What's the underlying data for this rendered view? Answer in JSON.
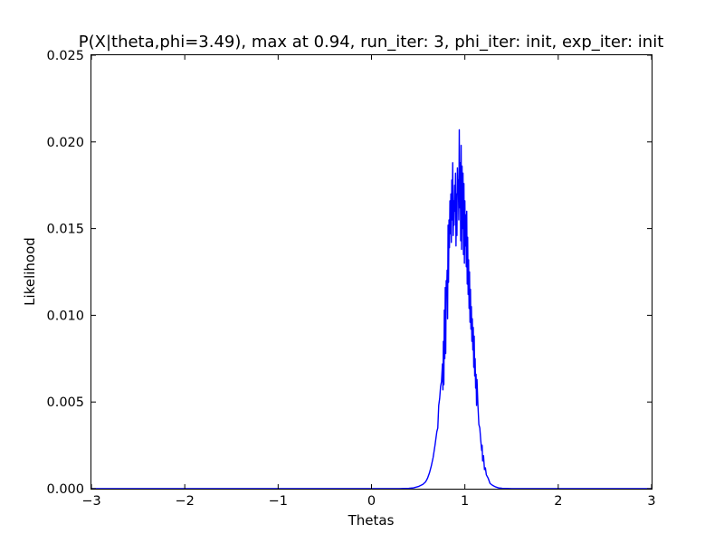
{
  "chart_data": {
    "type": "line",
    "title": "P(X|theta,phi=3.49), max at 0.94, run_iter: 3, phi_iter: init, exp_iter: init",
    "xlabel": "Thetas",
    "ylabel": "Likelihood",
    "xlim": [
      -3,
      3
    ],
    "ylim": [
      0,
      0.025
    ],
    "grid": false,
    "legend": "none",
    "x_ticks": [
      {
        "value": -3,
        "label": "−3"
      },
      {
        "value": -2,
        "label": "−2"
      },
      {
        "value": -1,
        "label": "−1"
      },
      {
        "value": 0,
        "label": "0"
      },
      {
        "value": 1,
        "label": "1"
      },
      {
        "value": 2,
        "label": "2"
      },
      {
        "value": 3,
        "label": "3"
      }
    ],
    "y_ticks": [
      {
        "value": 0,
        "label": "0.000"
      },
      {
        "value": 0.005,
        "label": "0.005"
      },
      {
        "value": 0.01,
        "label": "0.010"
      },
      {
        "value": 0.015,
        "label": "0.015"
      },
      {
        "value": 0.02,
        "label": "0.020"
      },
      {
        "value": 0.025,
        "label": "0.025"
      }
    ],
    "series": [
      {
        "color": "#0000ff",
        "points": [
          [
            -3.0,
            0.0
          ],
          [
            -1.0,
            0.0
          ],
          [
            0.0,
            0.0
          ],
          [
            0.3,
            0.0
          ],
          [
            0.4,
            2e-05
          ],
          [
            0.45,
            5e-05
          ],
          [
            0.5,
            0.00012
          ],
          [
            0.55,
            0.00025
          ],
          [
            0.58,
            0.0004
          ],
          [
            0.6,
            0.0006
          ],
          [
            0.62,
            0.0009
          ],
          [
            0.64,
            0.0013
          ],
          [
            0.66,
            0.0018
          ],
          [
            0.68,
            0.0025
          ],
          [
            0.7,
            0.0033
          ],
          [
            0.71,
            0.0035
          ],
          [
            0.72,
            0.0048
          ],
          [
            0.73,
            0.0052
          ],
          [
            0.74,
            0.0059
          ],
          [
            0.75,
            0.0062
          ],
          [
            0.76,
            0.0072
          ],
          [
            0.765,
            0.0057
          ],
          [
            0.77,
            0.0085
          ],
          [
            0.775,
            0.006
          ],
          [
            0.78,
            0.0103
          ],
          [
            0.785,
            0.0075
          ],
          [
            0.79,
            0.0116
          ],
          [
            0.795,
            0.0078
          ],
          [
            0.8,
            0.012
          ],
          [
            0.805,
            0.0112
          ],
          [
            0.81,
            0.0126
          ],
          [
            0.815,
            0.0098
          ],
          [
            0.82,
            0.0152
          ],
          [
            0.825,
            0.0119
          ],
          [
            0.83,
            0.0155
          ],
          [
            0.835,
            0.0139
          ],
          [
            0.84,
            0.0166
          ],
          [
            0.845,
            0.0147
          ],
          [
            0.85,
            0.017
          ],
          [
            0.855,
            0.0142
          ],
          [
            0.86,
            0.0178
          ],
          [
            0.865,
            0.0155
          ],
          [
            0.87,
            0.0188
          ],
          [
            0.875,
            0.0146
          ],
          [
            0.88,
            0.0166
          ],
          [
            0.885,
            0.0152
          ],
          [
            0.89,
            0.0175
          ],
          [
            0.895,
            0.016
          ],
          [
            0.9,
            0.0182
          ],
          [
            0.905,
            0.014
          ],
          [
            0.91,
            0.017
          ],
          [
            0.915,
            0.0146
          ],
          [
            0.92,
            0.0185
          ],
          [
            0.925,
            0.017
          ],
          [
            0.93,
            0.0178
          ],
          [
            0.935,
            0.0155
          ],
          [
            0.94,
            0.0207
          ],
          [
            0.945,
            0.0162
          ],
          [
            0.95,
            0.0188
          ],
          [
            0.955,
            0.0143
          ],
          [
            0.96,
            0.0198
          ],
          [
            0.965,
            0.0138
          ],
          [
            0.97,
            0.0186
          ],
          [
            0.975,
            0.015
          ],
          [
            0.98,
            0.0182
          ],
          [
            0.985,
            0.0135
          ],
          [
            0.99,
            0.0176
          ],
          [
            0.995,
            0.013
          ],
          [
            1.0,
            0.0166
          ],
          [
            1.005,
            0.014
          ],
          [
            1.01,
            0.0158
          ],
          [
            1.015,
            0.0128
          ],
          [
            1.02,
            0.016
          ],
          [
            1.025,
            0.0118
          ],
          [
            1.03,
            0.0145
          ],
          [
            1.035,
            0.0112
          ],
          [
            1.04,
            0.0132
          ],
          [
            1.045,
            0.0104
          ],
          [
            1.05,
            0.0125
          ],
          [
            1.055,
            0.0096
          ],
          [
            1.06,
            0.0115
          ],
          [
            1.065,
            0.0092
          ],
          [
            1.07,
            0.0105
          ],
          [
            1.075,
            0.0085
          ],
          [
            1.08,
            0.0098
          ],
          [
            1.085,
            0.008
          ],
          [
            1.09,
            0.0093
          ],
          [
            1.095,
            0.007
          ],
          [
            1.1,
            0.0088
          ],
          [
            1.105,
            0.0065
          ],
          [
            1.11,
            0.0075
          ],
          [
            1.115,
            0.0058
          ],
          [
            1.12,
            0.0066
          ],
          [
            1.125,
            0.0048
          ],
          [
            1.13,
            0.0063
          ],
          [
            1.14,
            0.0048
          ],
          [
            1.15,
            0.0037
          ],
          [
            1.16,
            0.0035
          ],
          [
            1.17,
            0.0028
          ],
          [
            1.18,
            0.0022
          ],
          [
            1.185,
            0.0025
          ],
          [
            1.19,
            0.0016
          ],
          [
            1.2,
            0.0019
          ],
          [
            1.21,
            0.0011
          ],
          [
            1.22,
            0.0012
          ],
          [
            1.23,
            0.0008
          ],
          [
            1.24,
            0.0007
          ],
          [
            1.25,
            0.0006
          ],
          [
            1.27,
            0.0003
          ],
          [
            1.3,
            0.00018
          ],
          [
            1.33,
            0.0001
          ],
          [
            1.36,
            5e-05
          ],
          [
            1.4,
            2e-05
          ],
          [
            1.5,
            0.0
          ],
          [
            2.0,
            0.0
          ],
          [
            3.0,
            0.0
          ]
        ]
      }
    ]
  }
}
